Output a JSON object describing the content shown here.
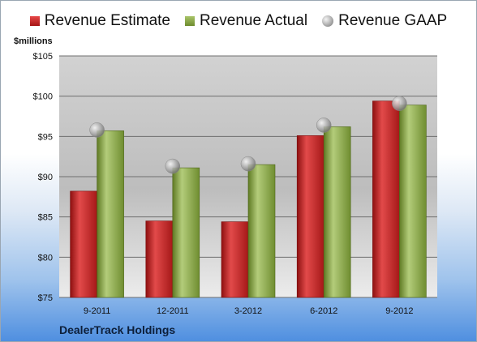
{
  "chart_data": {
    "type": "bar",
    "ylabel": "$millions",
    "ylim": [
      75,
      105
    ],
    "yticks": [
      75,
      80,
      85,
      90,
      95,
      100,
      105
    ],
    "ytick_labels": [
      "$75",
      "$80",
      "$85",
      "$90",
      "$95",
      "$100",
      "$105"
    ],
    "grid": true,
    "legend_position": "top",
    "categories": [
      "9-2011",
      "12-2011",
      "3-2012",
      "6-2012",
      "9-2012"
    ],
    "series": [
      {
        "name": "Revenue Estimate",
        "type": "bar",
        "color": "#c62020",
        "values": [
          88.2,
          84.5,
          84.4,
          95.1,
          99.4
        ]
      },
      {
        "name": "Revenue Actual",
        "type": "bar",
        "color": "#8aa84a",
        "values": [
          95.7,
          91.1,
          91.5,
          96.2,
          98.9
        ]
      },
      {
        "name": "Revenue GAAP",
        "type": "marker",
        "color": "#b0b0b0",
        "values": [
          95.8,
          91.3,
          91.6,
          96.4,
          99.1
        ]
      }
    ]
  },
  "footer": {
    "company": "DealerTrack Holdings"
  }
}
